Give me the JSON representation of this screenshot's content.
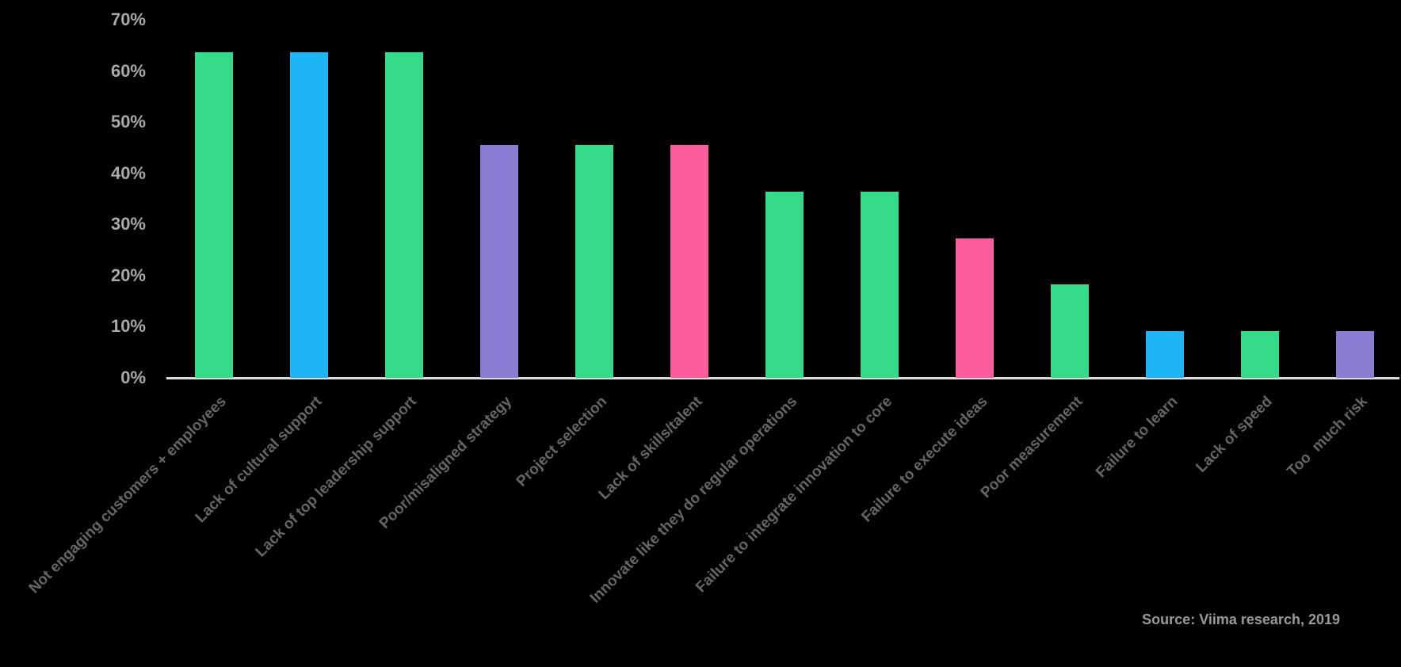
{
  "chart_data": {
    "type": "bar",
    "title": "",
    "xlabel": "",
    "ylabel": "",
    "ylim": [
      0,
      70
    ],
    "yticks": [
      "0%",
      "10%",
      "20%",
      "30%",
      "40%",
      "50%",
      "60%",
      "70%"
    ],
    "grid": false,
    "legend": null,
    "categories": [
      "Not engaging customers + employees",
      "Lack of cultural support",
      "Lack of top leadership support",
      "Poor/misaligned strategy",
      "Project selection",
      "Lack of skills/talent",
      "Innovate like they do regular operations",
      "Failure to integrate innovation to core",
      "Failure to execute ideas",
      "Poor measurement",
      "Failure to learn",
      "Lack of speed",
      "Too  much risk"
    ],
    "values": [
      63.6,
      63.6,
      63.6,
      45.5,
      45.5,
      45.5,
      36.4,
      36.4,
      27.3,
      18.2,
      9.1,
      9.1,
      9.1
    ],
    "bar_colors": [
      "#36DB8A",
      "#1DB5F3",
      "#36DB8A",
      "#897CD1",
      "#36DB8A",
      "#FA5C9C",
      "#36DB8A",
      "#36DB8A",
      "#FA5C9C",
      "#36DB8A",
      "#1DB5F3",
      "#36DB8A",
      "#897CD1"
    ],
    "annotations": [
      "Source: Viima research, 2019"
    ]
  },
  "colors": {
    "background": "#000000",
    "green": "#36DB8A",
    "blue": "#1DB5F3",
    "purple": "#897CD1",
    "pink": "#FA5C9C",
    "axis": "#dcdcdc",
    "tick_label": "#a9a9a9",
    "category_label": "#666666"
  },
  "source": "Source: Viima research, 2019"
}
